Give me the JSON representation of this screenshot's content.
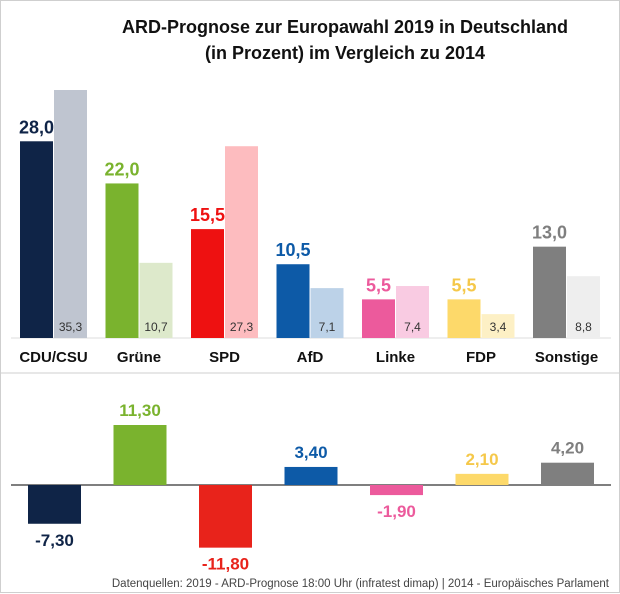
{
  "chart_data": [
    {
      "type": "bar",
      "title": "ARD-Prognose zur Europawahl 2019 in Deutschland",
      "subtitle": "(in Prozent) im Vergleich zu 2014",
      "categories": [
        "CDU/CSU",
        "Grüne",
        "SPD",
        "AfD",
        "Linke",
        "FDP",
        "Sonstige"
      ],
      "series": [
        {
          "values": [
            28.0,
            22.0,
            15.5,
            10.5,
            5.5,
            5.5,
            13.0
          ],
          "labels": [
            "28,0",
            "22,0",
            "15,5",
            "10,5",
            "5,5",
            "5,5",
            "13,0"
          ]
        },
        {
          "values": [
            35.3,
            10.7,
            27.3,
            7.1,
            7.4,
            3.4,
            8.8
          ],
          "labels": [
            "35,3",
            "10,7",
            "27,3",
            "7,1",
            "7,4",
            "3,4",
            "8,8"
          ]
        }
      ],
      "colors_2019": [
        "#0f2447",
        "#7ab32e",
        "#ee1111",
        "#0d5aa7",
        "#ec5a9c",
        "#fdd96a",
        "#7f7f7f"
      ],
      "colors_2014": [
        "#bfc5d0",
        "#dde9cb",
        "#fdbcbf",
        "#bcd2e8",
        "#f9cbe2",
        "#fdf0c5",
        "#eeeeee"
      ],
      "ylim": [
        0,
        37
      ]
    },
    {
      "type": "bar",
      "categories": [
        "CDU/CSU",
        "Grüne",
        "SPD",
        "AfD",
        "Linke",
        "FDP",
        "Sonstige"
      ],
      "values": [
        -7.3,
        11.3,
        -11.8,
        3.4,
        -1.9,
        2.1,
        4.2
      ],
      "labels": [
        "-7,30",
        "11,30",
        "-11,80",
        "3,40",
        "-1,90",
        "2,10",
        "4,20"
      ],
      "colors": [
        "#0f2447",
        "#7ab32e",
        "#e8231b",
        "#0d5aa7",
        "#ec5a9c",
        "#fdd96a",
        "#7f7f7f"
      ],
      "ylim": [
        -13,
        13
      ]
    }
  ],
  "source": "Datenquellen: 2019 - ARD-Prognose 18:00 Uhr (infratest dimap) | 2014 - Europäisches Parlament"
}
